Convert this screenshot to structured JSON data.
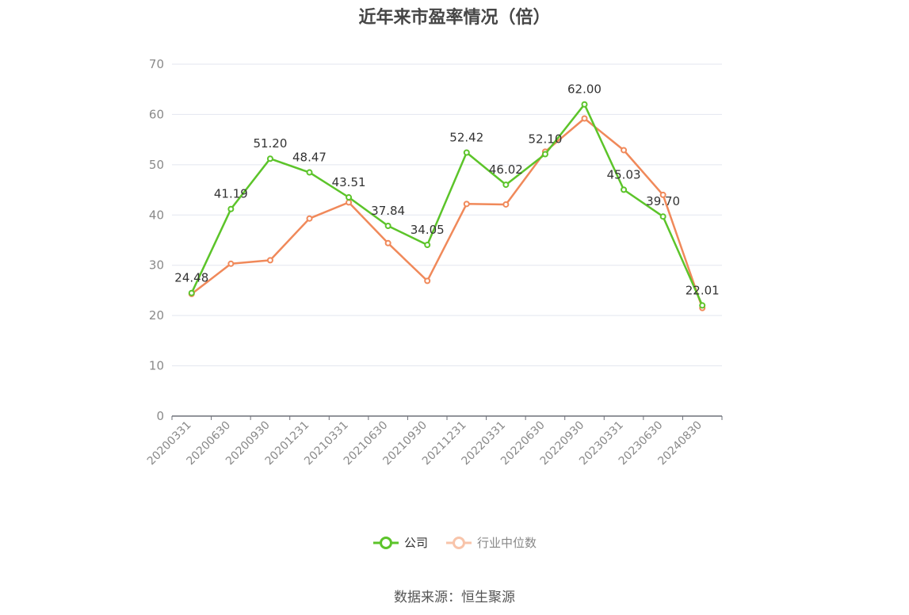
{
  "chart_data": {
    "type": "line",
    "title": "近年来市盈率情况（倍）",
    "categories": [
      "20200331",
      "20200630",
      "20200930",
      "20201231",
      "20210331",
      "20210630",
      "20210930",
      "20211231",
      "20220331",
      "20220630",
      "20220930",
      "20230331",
      "20230630",
      "20240830"
    ],
    "series": [
      {
        "name": "公司",
        "color": "#5cc42a",
        "values": [
          24.48,
          41.19,
          51.2,
          48.47,
          43.51,
          37.84,
          34.05,
          52.42,
          46.02,
          52.1,
          62.0,
          45.03,
          39.7,
          22.01
        ],
        "labels": [
          "24.48",
          "41.19",
          "51.20",
          "48.47",
          "43.51",
          "37.84",
          "34.05",
          "52.42",
          "46.02",
          "52.10",
          "62.00",
          "45.03",
          "39.70",
          "22.01"
        ]
      },
      {
        "name": "行业中位数",
        "color": "#f0895a",
        "values": [
          24.3,
          30.3,
          31.0,
          39.3,
          42.5,
          34.4,
          26.9,
          42.2,
          42.1,
          52.6,
          59.2,
          52.9,
          44.0,
          21.5
        ]
      }
    ],
    "yticks": [
      "0",
      "10",
      "20",
      "30",
      "40",
      "50",
      "60",
      "70"
    ],
    "ylim": [
      0,
      70
    ],
    "grid": true,
    "legend_position": "bottom-center",
    "source": "数据来源：恒生聚源"
  }
}
